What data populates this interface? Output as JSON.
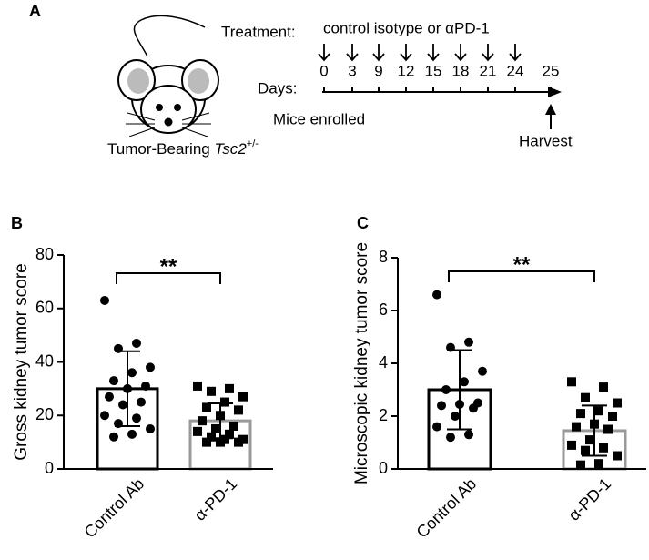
{
  "panels": [
    "A",
    "B",
    "C"
  ],
  "timeline": {
    "treatment_label": "Treatment:",
    "treatment_text": "control isotype or αPD-1",
    "days_label": "Days:",
    "days": [
      0,
      3,
      9,
      12,
      15,
      18,
      21,
      24,
      25
    ],
    "enrolled_label": "Mice enrolled",
    "harvest_label": "Harvest",
    "mouse_label": "Tumor-Bearing",
    "gene": "Tsc2",
    "genotype": "+/-"
  },
  "chart_data": [
    {
      "type": "bar",
      "ylabel": "Gross kidney tumor score",
      "categories": [
        "Control Ab",
        "α-PD-1"
      ],
      "values": [
        30,
        18
      ],
      "errors": [
        14,
        6.5
      ],
      "points": [
        [
          63,
          47,
          45,
          38,
          36,
          33,
          31,
          30,
          27,
          25,
          24,
          20,
          19,
          17,
          15,
          13,
          12
        ],
        [
          31,
          30,
          29,
          27,
          25,
          23,
          22,
          20,
          18,
          16,
          15,
          14,
          13,
          12,
          11,
          11,
          10,
          10,
          10
        ]
      ],
      "colors": [
        "#000000",
        "#999999"
      ],
      "ylim": [
        0,
        80
      ],
      "yticks": [
        0,
        20,
        40,
        60,
        80
      ],
      "significance": "**"
    },
    {
      "type": "bar",
      "ylabel": "Microscopic kidney tumor score",
      "categories": [
        "Control Ab",
        "α-PD-1"
      ],
      "values": [
        3.0,
        1.45
      ],
      "errors": [
        1.5,
        0.95
      ],
      "points": [
        [
          6.6,
          4.8,
          4.6,
          3.7,
          3.3,
          3.0,
          2.5,
          2.45,
          2.4,
          2.3,
          2.0,
          1.6,
          1.3,
          1.2
        ],
        [
          3.3,
          3.1,
          2.7,
          2.5,
          2.2,
          2.1,
          2.0,
          1.7,
          1.6,
          1.5,
          1.1,
          0.9,
          0.8,
          0.7,
          0.5,
          0.2,
          0.15
        ]
      ],
      "colors": [
        "#000000",
        "#999999"
      ],
      "ylim": [
        0,
        8
      ],
      "yticks": [
        0,
        2,
        4,
        6,
        8
      ],
      "significance": "**"
    }
  ]
}
